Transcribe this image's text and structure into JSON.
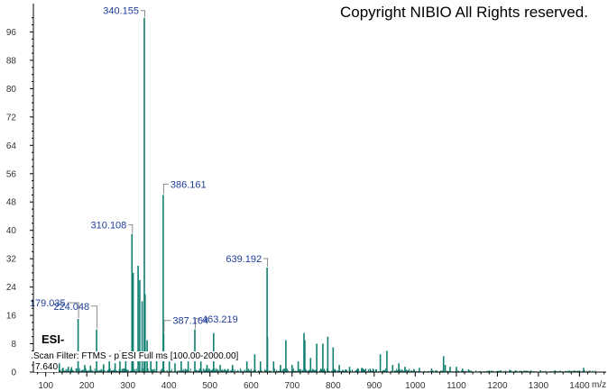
{
  "copyright": "Copyright NIBIO All Rights reserved.",
  "ion_mode": "ESI-",
  "scan_filter": "Scan Filter: FTMS - p ESI Full ms [100.00-2000.00]",
  "normalization": "7.640",
  "colors": {
    "peak": "#0f7f6f",
    "label": "#1f3d99",
    "axis": "#000000"
  },
  "chart_data": {
    "type": "bar",
    "title": "",
    "xlabel": "m/z",
    "ylabel": "",
    "xlim": [
      70,
      1465
    ],
    "ylim": [
      0,
      104
    ],
    "xticks": [
      100,
      200,
      300,
      400,
      500,
      600,
      700,
      800,
      900,
      1000,
      1100,
      1200,
      1300,
      1400
    ],
    "yticks": [
      0,
      8,
      16,
      24,
      32,
      40,
      48,
      56,
      64,
      72,
      80,
      88,
      96
    ],
    "peaks": [
      {
        "mz": 133,
        "rel": 2.5
      },
      {
        "mz": 142,
        "rel": 1.2
      },
      {
        "mz": 155,
        "rel": 1.5
      },
      {
        "mz": 163,
        "rel": 1.4
      },
      {
        "mz": 179.035,
        "rel": 15,
        "label": "179.035"
      },
      {
        "mz": 195,
        "rel": 2
      },
      {
        "mz": 209,
        "rel": 1.8
      },
      {
        "mz": 224.048,
        "rel": 12,
        "label": "224.048"
      },
      {
        "mz": 241,
        "rel": 2.2
      },
      {
        "mz": 255,
        "rel": 3
      },
      {
        "mz": 269,
        "rel": 2.5
      },
      {
        "mz": 281,
        "rel": 6
      },
      {
        "mz": 295,
        "rel": 3.5
      },
      {
        "mz": 310.108,
        "rel": 39,
        "label": "310.108"
      },
      {
        "mz": 313,
        "rel": 28
      },
      {
        "mz": 325,
        "rel": 30
      },
      {
        "mz": 329,
        "rel": 26
      },
      {
        "mz": 335,
        "rel": 20
      },
      {
        "mz": 340.155,
        "rel": 100,
        "label": "340.155"
      },
      {
        "mz": 342,
        "rel": 22
      },
      {
        "mz": 347,
        "rel": 9
      },
      {
        "mz": 356,
        "rel": 4
      },
      {
        "mz": 370,
        "rel": 5
      },
      {
        "mz": 386.161,
        "rel": 50,
        "label": "386.161"
      },
      {
        "mz": 387.164,
        "rel": 11,
        "label": "387.164"
      },
      {
        "mz": 401,
        "rel": 3
      },
      {
        "mz": 415,
        "rel": 2.5
      },
      {
        "mz": 430,
        "rel": 5
      },
      {
        "mz": 447,
        "rel": 3
      },
      {
        "mz": 463.219,
        "rel": 12,
        "label": "463.219"
      },
      {
        "mz": 478,
        "rel": 3
      },
      {
        "mz": 493,
        "rel": 2
      },
      {
        "mz": 509,
        "rel": 11
      },
      {
        "mz": 525,
        "rel": 2
      },
      {
        "mz": 555,
        "rel": 2
      },
      {
        "mz": 590,
        "rel": 3
      },
      {
        "mz": 609,
        "rel": 5
      },
      {
        "mz": 623,
        "rel": 3
      },
      {
        "mz": 639.192,
        "rel": 29.5,
        "label": "639.192"
      },
      {
        "mz": 640,
        "rel": 10
      },
      {
        "mz": 655,
        "rel": 3
      },
      {
        "mz": 672,
        "rel": 2
      },
      {
        "mz": 685,
        "rel": 9
      },
      {
        "mz": 700,
        "rel": 2
      },
      {
        "mz": 715,
        "rel": 3
      },
      {
        "mz": 729,
        "rel": 11
      },
      {
        "mz": 731,
        "rel": 9
      },
      {
        "mz": 745,
        "rel": 4
      },
      {
        "mz": 760,
        "rel": 8
      },
      {
        "mz": 775,
        "rel": 8
      },
      {
        "mz": 787,
        "rel": 10
      },
      {
        "mz": 800,
        "rel": 7
      },
      {
        "mz": 815,
        "rel": 2
      },
      {
        "mz": 840,
        "rel": 1.5
      },
      {
        "mz": 870,
        "rel": 1.2
      },
      {
        "mz": 890,
        "rel": 1
      },
      {
        "mz": 915,
        "rel": 5
      },
      {
        "mz": 931,
        "rel": 6
      },
      {
        "mz": 945,
        "rel": 2
      },
      {
        "mz": 960,
        "rel": 2.5
      },
      {
        "mz": 975,
        "rel": 1.5
      },
      {
        "mz": 1010,
        "rel": 1.2
      },
      {
        "mz": 1040,
        "rel": 1
      },
      {
        "mz": 1069,
        "rel": 4.5
      },
      {
        "mz": 1073,
        "rel": 2
      },
      {
        "mz": 1085,
        "rel": 1.5
      },
      {
        "mz": 1100,
        "rel": 1.5
      },
      {
        "mz": 1115,
        "rel": 1
      },
      {
        "mz": 1130,
        "rel": 0.8
      },
      {
        "mz": 1230,
        "rel": 0.6
      },
      {
        "mz": 1305,
        "rel": 0.5
      },
      {
        "mz": 1410,
        "rel": 1.2
      }
    ]
  }
}
